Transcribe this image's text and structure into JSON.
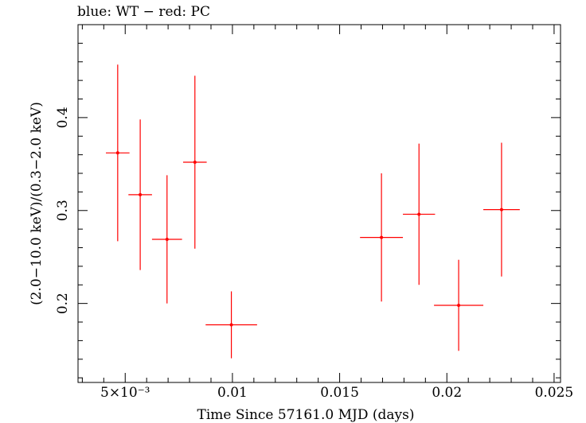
{
  "chart_data": {
    "type": "scatter",
    "title": "blue: WT − red: PC",
    "xlabel": "Time Since 57161.0 MJD (days)",
    "ylabel": "(2.0−10.0 keV)/(0.3−2.0 keV)",
    "xlim": [
      0.0028,
      0.0253
    ],
    "ylim": [
      0.115,
      0.5
    ],
    "x_ticks": [
      {
        "value": 0.005,
        "label": "5×10⁻³"
      },
      {
        "value": 0.01,
        "label": "0.01"
      },
      {
        "value": 0.015,
        "label": "0.015"
      },
      {
        "value": 0.02,
        "label": "0.02"
      },
      {
        "value": 0.025,
        "label": "0.025"
      }
    ],
    "y_ticks": [
      {
        "value": 0.2,
        "label": "0.2"
      },
      {
        "value": 0.3,
        "label": "0.3"
      },
      {
        "value": 0.4,
        "label": "0.4"
      }
    ],
    "series": [
      {
        "color": "#ff0000",
        "points": [
          {
            "x": 0.00465,
            "xerr": 0.00055,
            "y": 0.362,
            "yerr_low": 0.095,
            "yerr_high": 0.095
          },
          {
            "x": 0.0057,
            "xerr": 0.00055,
            "y": 0.317,
            "yerr_low": 0.081,
            "yerr_high": 0.081
          },
          {
            "x": 0.00695,
            "xerr": 0.0007,
            "y": 0.269,
            "yerr_low": 0.069,
            "yerr_high": 0.069
          },
          {
            "x": 0.00825,
            "xerr": 0.00055,
            "y": 0.352,
            "yerr_low": 0.093,
            "yerr_high": 0.093
          },
          {
            "x": 0.00995,
            "xerr": 0.0012,
            "y": 0.177,
            "yerr_low": 0.036,
            "yerr_high": 0.036
          },
          {
            "x": 0.01695,
            "xerr": 0.001,
            "y": 0.271,
            "yerr_low": 0.069,
            "yerr_high": 0.069
          },
          {
            "x": 0.0187,
            "xerr": 0.00075,
            "y": 0.296,
            "yerr_low": 0.076,
            "yerr_high": 0.076
          },
          {
            "x": 0.02055,
            "xerr": 0.00115,
            "y": 0.198,
            "yerr_low": 0.049,
            "yerr_high": 0.049
          },
          {
            "x": 0.02255,
            "xerr": 0.00085,
            "y": 0.301,
            "yerr_low": 0.072,
            "yerr_high": 0.072
          }
        ]
      }
    ],
    "grid": false,
    "legend": "none"
  }
}
